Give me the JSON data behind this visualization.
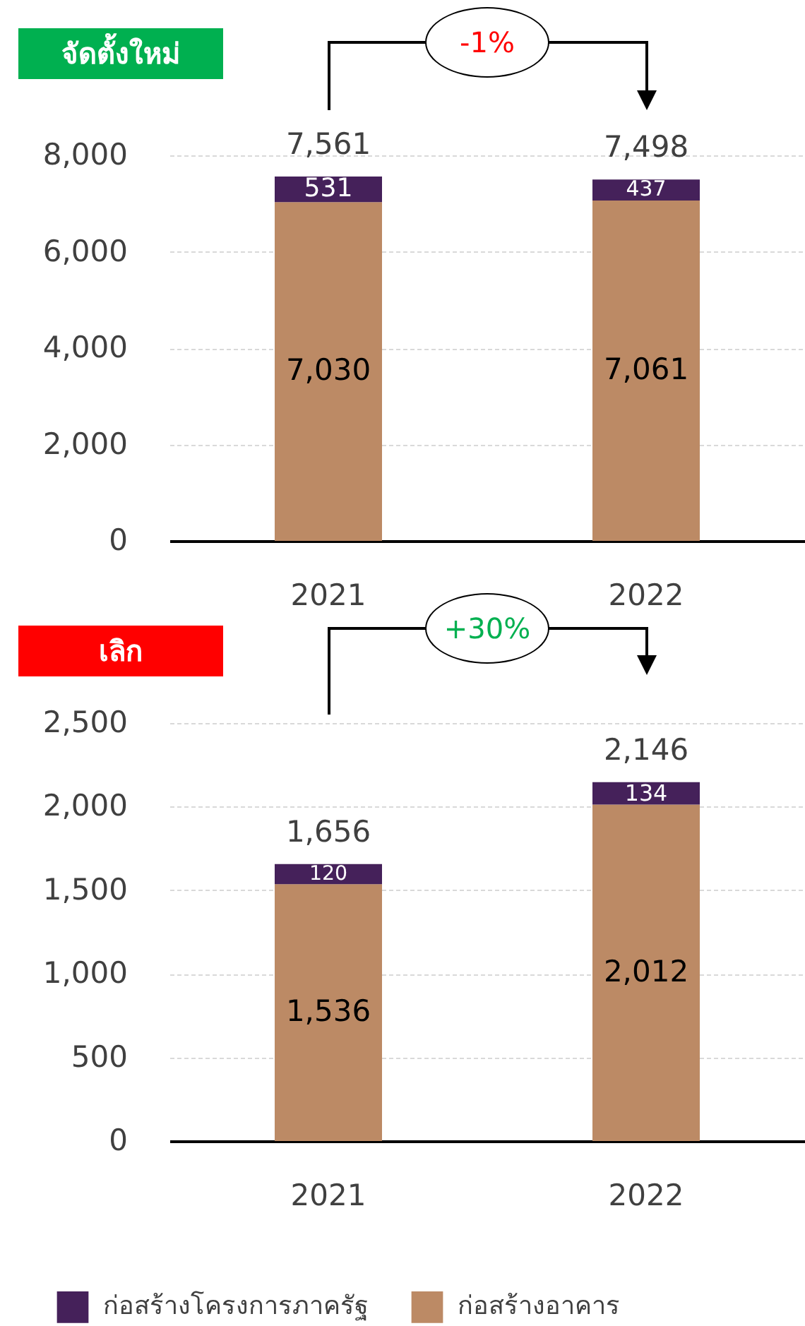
{
  "chart_data": [
    {
      "type": "bar",
      "title": "จัดตั้งใหม่",
      "categories": [
        "2021",
        "2022"
      ],
      "stacked": true,
      "series": [
        {
          "color": "#bc8a65",
          "values": [
            7030,
            7061
          ],
          "value_labels": [
            "7,030",
            "7,061"
          ]
        },
        {
          "color": "#45215a",
          "values": [
            531,
            437
          ],
          "value_labels": [
            "531",
            "437"
          ]
        }
      ],
      "ylim": [
        0,
        8000
      ],
      "yticks": [
        {
          "value": 0,
          "label": "0"
        },
        {
          "value": 2000,
          "label": "2,000"
        },
        {
          "value": 4000,
          "label": "4,000"
        },
        {
          "value": 6000,
          "label": "6,000"
        },
        {
          "value": 8000,
          "label": "8,000"
        }
      ],
      "grid": "y",
      "totals": [
        "7,561",
        "7,498"
      ],
      "annotations": [
        "-1%"
      ]
    },
    {
      "type": "bar",
      "title": "เลิก",
      "categories": [
        "2021",
        "2022"
      ],
      "stacked": true,
      "series": [
        {
          "name": "ก่อสร้างอาคาร",
          "color": "#bc8a65",
          "values": [
            1536,
            2012
          ],
          "value_labels": [
            "1,536",
            "2,012"
          ]
        },
        {
          "name": "ก่อสร้างโครงการภาครัฐ",
          "color": "#45215a",
          "values": [
            120,
            134
          ],
          "value_labels": [
            "120",
            "134"
          ]
        }
      ],
      "ylim": [
        0,
        2500
      ],
      "yticks": [
        {
          "value": 0,
          "label": "0"
        },
        {
          "value": 500,
          "label": "500"
        },
        {
          "value": 1000,
          "label": "1,000"
        },
        {
          "value": 1500,
          "label": "1,500"
        },
        {
          "value": 2000,
          "label": "2,000"
        },
        {
          "value": 2500,
          "label": "2,500"
        }
      ],
      "grid": "y",
      "totals": [
        "1,656",
        "2,146"
      ],
      "annotations": [
        "+30%"
      ],
      "legend": "bottom"
    }
  ]
}
